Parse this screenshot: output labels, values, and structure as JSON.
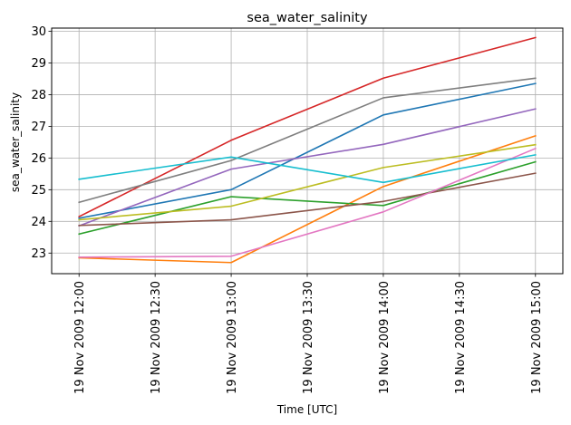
{
  "chart_data": {
    "type": "line",
    "title": "sea_water_salinity",
    "xlabel": "Time  [UTC]",
    "ylabel": "sea_water_salinity",
    "grid": true,
    "legend": "none",
    "x": [
      "19 Nov 2009 12:00",
      "19 Nov 2009 13:00",
      "19 Nov 2009 14:00",
      "19 Nov 2009 15:00"
    ],
    "x_hours": [
      12,
      13,
      14,
      15
    ],
    "xlim": [
      11.82,
      15.18
    ],
    "ylim": [
      22.35,
      30.1
    ],
    "xticks": [
      {
        "hour": 12,
        "label": "19 Nov 2009 12:00"
      },
      {
        "hour": 12.5,
        "label": "19 Nov 2009 12:30"
      },
      {
        "hour": 13,
        "label": "19 Nov 2009 13:00"
      },
      {
        "hour": 13.5,
        "label": "19 Nov 2009 13:30"
      },
      {
        "hour": 14,
        "label": "19 Nov 2009 14:00"
      },
      {
        "hour": 14.5,
        "label": "19 Nov 2009 14:30"
      },
      {
        "hour": 15,
        "label": "19 Nov 2009 15:00"
      }
    ],
    "yticks": [
      23,
      24,
      25,
      26,
      27,
      28,
      29,
      30
    ],
    "series": [
      {
        "color": "#1f77b4",
        "values": [
          24.1,
          25.0,
          27.36,
          28.35
        ]
      },
      {
        "color": "#ff7f0e",
        "values": [
          22.85,
          22.7,
          25.1,
          26.7
        ]
      },
      {
        "color": "#2ca02c",
        "values": [
          23.6,
          24.78,
          24.5,
          25.88
        ]
      },
      {
        "color": "#d62728",
        "values": [
          24.15,
          26.56,
          28.52,
          29.8
        ]
      },
      {
        "color": "#9467bd",
        "values": [
          23.86,
          25.65,
          26.43,
          27.55
        ]
      },
      {
        "color": "#8c564b",
        "values": [
          23.87,
          24.05,
          24.63,
          25.52
        ]
      },
      {
        "color": "#e377c2",
        "values": [
          22.87,
          22.9,
          24.3,
          26.3
        ]
      },
      {
        "color": "#7f7f7f",
        "values": [
          24.6,
          25.92,
          27.9,
          28.52
        ]
      },
      {
        "color": "#bcbd22",
        "values": [
          24.05,
          24.48,
          25.7,
          26.42
        ]
      },
      {
        "color": "#17becf",
        "values": [
          25.33,
          26.03,
          25.23,
          26.1
        ]
      }
    ]
  }
}
